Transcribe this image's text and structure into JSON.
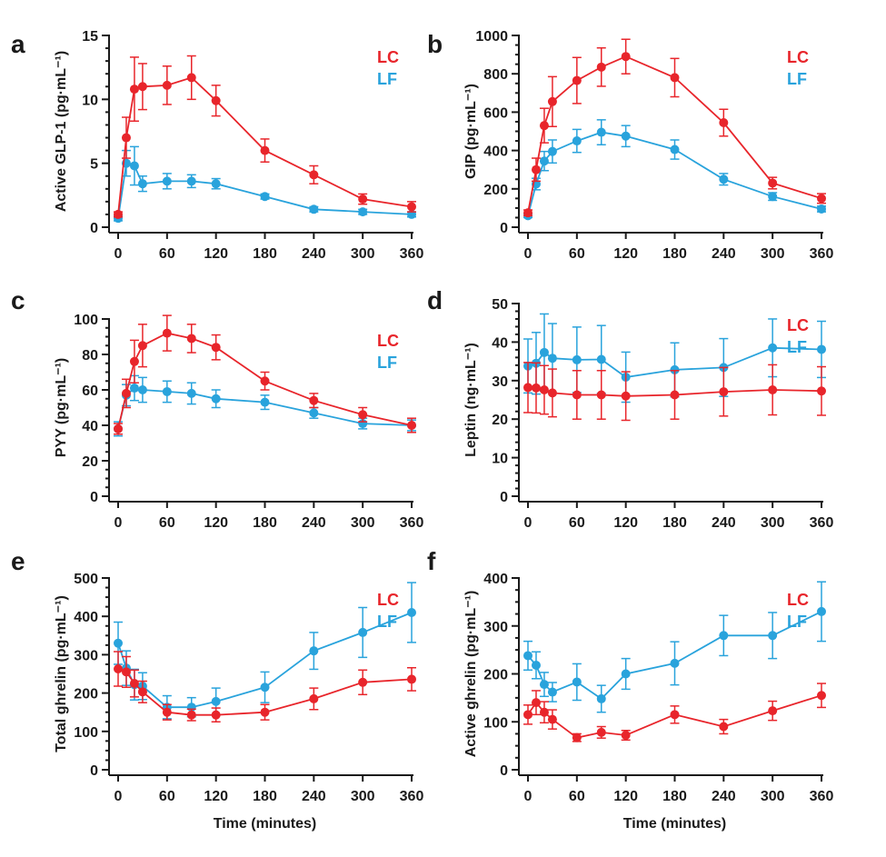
{
  "colors": {
    "LC": "#e8252b",
    "LF": "#29a3dc"
  },
  "chart_data": [
    {
      "panel": "a",
      "type": "line",
      "ylabel": "Active GLP-1 (pg·mL⁻¹)",
      "xlabel": "",
      "xlim": [
        0,
        360
      ],
      "ylim": [
        0,
        15
      ],
      "xticks": [
        0,
        60,
        120,
        180,
        240,
        300,
        360
      ],
      "yticks": [
        0,
        5,
        10,
        15
      ],
      "yminor": 1,
      "legend": [
        "LC",
        "LF"
      ],
      "legend_position": "top-right",
      "series": [
        {
          "name": "LC",
          "x": [
            0,
            10,
            20,
            30,
            60,
            90,
            120,
            180,
            240,
            300,
            360
          ],
          "y": [
            1.0,
            7.0,
            10.8,
            11.0,
            11.1,
            11.7,
            9.9,
            6.0,
            4.1,
            2.2,
            1.6
          ],
          "err": [
            0.2,
            1.6,
            2.5,
            1.8,
            1.5,
            1.7,
            1.2,
            0.9,
            0.7,
            0.4,
            0.4
          ]
        },
        {
          "name": "LF",
          "x": [
            0,
            10,
            20,
            30,
            60,
            90,
            120,
            180,
            240,
            300,
            360
          ],
          "y": [
            0.7,
            5.0,
            4.8,
            3.4,
            3.6,
            3.6,
            3.4,
            2.4,
            1.4,
            1.2,
            1.0
          ],
          "err": [
            0.2,
            1.0,
            1.5,
            0.6,
            0.6,
            0.5,
            0.4,
            0.2,
            0.2,
            0.2,
            0.2
          ]
        }
      ]
    },
    {
      "panel": "b",
      "type": "line",
      "ylabel": "GIP (pg·mL⁻¹)",
      "xlabel": "",
      "xlim": [
        0,
        360
      ],
      "ylim": [
        0,
        1000
      ],
      "xticks": [
        0,
        60,
        120,
        180,
        240,
        300,
        360
      ],
      "yticks": [
        0,
        200,
        400,
        600,
        800,
        1000
      ],
      "yminor": 50,
      "legend": [
        "LC",
        "LF"
      ],
      "legend_position": "top-right",
      "series": [
        {
          "name": "LC",
          "x": [
            0,
            10,
            20,
            30,
            60,
            90,
            120,
            180,
            240,
            300,
            360
          ],
          "y": [
            75,
            300,
            530,
            655,
            765,
            835,
            890,
            780,
            545,
            230,
            150
          ],
          "err": [
            15,
            60,
            90,
            130,
            120,
            100,
            90,
            100,
            70,
            30,
            25
          ]
        },
        {
          "name": "LF",
          "x": [
            0,
            10,
            20,
            30,
            60,
            90,
            120,
            180,
            240,
            300,
            360
          ],
          "y": [
            60,
            225,
            345,
            395,
            450,
            495,
            475,
            405,
            250,
            160,
            95
          ],
          "err": [
            10,
            30,
            50,
            60,
            60,
            65,
            55,
            50,
            30,
            20,
            15
          ]
        }
      ]
    },
    {
      "panel": "c",
      "type": "line",
      "ylabel": "PYY (pg·mL⁻¹)",
      "xlabel": "",
      "xlim": [
        0,
        360
      ],
      "ylim": [
        0,
        100
      ],
      "xticks": [
        0,
        60,
        120,
        180,
        240,
        300,
        360
      ],
      "yticks": [
        0,
        20,
        40,
        60,
        80,
        100
      ],
      "yminor": 5,
      "legend": [
        "LC",
        "LF"
      ],
      "legend_position": "top-right",
      "series": [
        {
          "name": "LC",
          "x": [
            0,
            10,
            20,
            30,
            60,
            90,
            120,
            180,
            240,
            300,
            360
          ],
          "y": [
            38,
            58,
            76,
            85,
            92,
            89,
            84,
            65,
            54,
            46,
            40
          ],
          "err": [
            3,
            8,
            12,
            12,
            10,
            8,
            7,
            5,
            4,
            4,
            4
          ]
        },
        {
          "name": "LF",
          "x": [
            0,
            10,
            20,
            30,
            60,
            90,
            120,
            180,
            240,
            300,
            360
          ],
          "y": [
            38,
            57,
            61,
            60,
            59,
            58,
            55,
            53,
            47,
            41,
            40
          ],
          "err": [
            4,
            6,
            7,
            7,
            6,
            6,
            5,
            4,
            3,
            3,
            3
          ]
        }
      ]
    },
    {
      "panel": "d",
      "type": "line",
      "ylabel": "Leptin (ng·mL⁻¹)",
      "xlabel": "",
      "xlim": [
        0,
        360
      ],
      "ylim": [
        0,
        50
      ],
      "xticks": [
        0,
        60,
        120,
        180,
        240,
        300,
        360
      ],
      "yticks": [
        0,
        10,
        20,
        30,
        40,
        50
      ],
      "yminor": 2,
      "legend": [
        "LC",
        "LF"
      ],
      "legend_position": "top-right",
      "series": [
        {
          "name": "LC",
          "x": [
            0,
            10,
            20,
            30,
            60,
            90,
            120,
            180,
            240,
            300,
            360
          ],
          "y": [
            28.2,
            28.1,
            27.6,
            26.8,
            26.3,
            26.3,
            26.0,
            26.3,
            27.1,
            27.6,
            27.3
          ],
          "err": [
            6.5,
            6.5,
            6.3,
            6.2,
            6.3,
            6.3,
            6.3,
            6.3,
            6.3,
            6.5,
            6.3
          ]
        },
        {
          "name": "LF",
          "x": [
            0,
            10,
            20,
            30,
            60,
            90,
            120,
            180,
            240,
            300,
            360
          ],
          "y": [
            33.8,
            34.5,
            37.3,
            35.8,
            35.4,
            35.5,
            30.9,
            32.8,
            33.4,
            38.5,
            38.1
          ],
          "err": [
            7.0,
            8.0,
            10.0,
            9.0,
            8.5,
            8.8,
            6.5,
            7.0,
            7.5,
            7.5,
            7.3
          ]
        }
      ]
    },
    {
      "panel": "e",
      "type": "line",
      "ylabel": "Total ghrelin (pg·mL⁻¹)",
      "xlabel": "Time (minutes)",
      "xlim": [
        0,
        360
      ],
      "ylim": [
        0,
        500
      ],
      "xticks": [
        0,
        60,
        120,
        180,
        240,
        300,
        360
      ],
      "yticks": [
        0,
        100,
        200,
        300,
        400,
        500
      ],
      "yminor": 25,
      "legend": [
        "LC",
        "LF"
      ],
      "legend_position": "top-right",
      "series": [
        {
          "name": "LC",
          "x": [
            0,
            10,
            20,
            30,
            60,
            90,
            120,
            180,
            240,
            300,
            360
          ],
          "y": [
            263,
            255,
            225,
            203,
            150,
            143,
            143,
            150,
            185,
            228,
            236
          ],
          "err": [
            45,
            40,
            35,
            28,
            20,
            15,
            18,
            20,
            28,
            32,
            30
          ]
        },
        {
          "name": "LF",
          "x": [
            0,
            10,
            20,
            30,
            60,
            90,
            120,
            180,
            240,
            300,
            360
          ],
          "y": [
            330,
            265,
            222,
            218,
            163,
            163,
            178,
            215,
            310,
            358,
            410
          ],
          "err": [
            55,
            45,
            40,
            35,
            30,
            25,
            35,
            40,
            48,
            65,
            78
          ]
        }
      ]
    },
    {
      "panel": "f",
      "type": "line",
      "ylabel": "Active ghrelin (pg·mL⁻¹)",
      "xlabel": "Time (minutes)",
      "xlim": [
        0,
        360
      ],
      "ylim": [
        0,
        400
      ],
      "xticks": [
        0,
        60,
        120,
        180,
        240,
        300,
        360
      ],
      "yticks": [
        0,
        100,
        200,
        300,
        400
      ],
      "yminor": 25,
      "legend": [
        "LC",
        "LF"
      ],
      "legend_position": "top-right",
      "series": [
        {
          "name": "LC",
          "x": [
            0,
            10,
            20,
            30,
            60,
            90,
            120,
            180,
            240,
            300,
            360
          ],
          "y": [
            115,
            140,
            120,
            105,
            67,
            78,
            72,
            115,
            90,
            123,
            155
          ],
          "err": [
            20,
            25,
            22,
            20,
            8,
            12,
            10,
            18,
            15,
            20,
            25
          ]
        },
        {
          "name": "LF",
          "x": [
            0,
            10,
            20,
            30,
            60,
            90,
            120,
            180,
            240,
            300,
            360
          ],
          "y": [
            238,
            218,
            178,
            162,
            183,
            148,
            200,
            222,
            280,
            280,
            330
          ],
          "err": [
            30,
            28,
            25,
            20,
            38,
            28,
            32,
            45,
            42,
            48,
            62
          ]
        }
      ]
    }
  ]
}
